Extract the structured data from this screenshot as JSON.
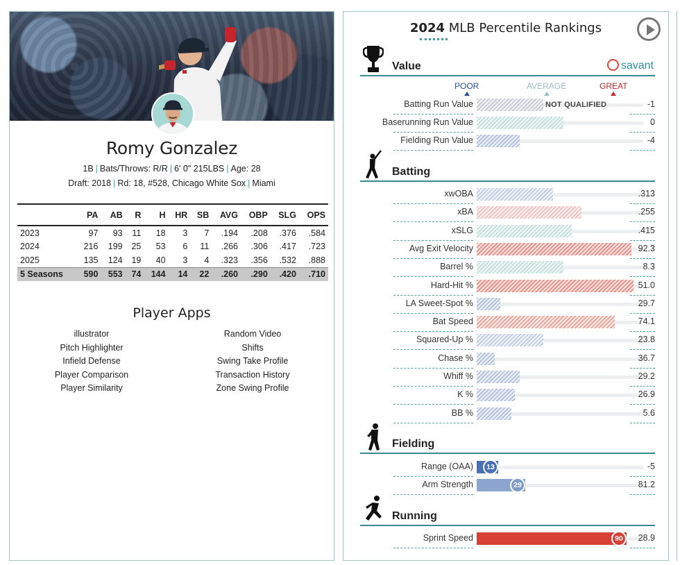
{
  "player": {
    "name": "Romy Gonzalez",
    "position": "1B",
    "bats_throws": "Bats/Throws: R/R",
    "height_weight": "6' 0\" 215LBS",
    "age": "Age: 28",
    "draft": "Draft: 2018",
    "round": "Rd: 18, #528, Chicago White Sox",
    "school": "Miami"
  },
  "stats_table": {
    "headers": [
      "",
      "PA",
      "AB",
      "R",
      "H",
      "HR",
      "SB",
      "AVG",
      "OBP",
      "SLG",
      "OPS"
    ],
    "rows": [
      [
        "2023",
        "97",
        "93",
        "11",
        "18",
        "3",
        "7",
        ".194",
        ".208",
        ".376",
        ".584"
      ],
      [
        "2024",
        "216",
        "199",
        "25",
        "53",
        "6",
        "11",
        ".266",
        ".306",
        ".417",
        ".723"
      ],
      [
        "2025",
        "135",
        "124",
        "19",
        "40",
        "3",
        "4",
        ".323",
        ".356",
        ".532",
        ".888"
      ]
    ],
    "total": [
      "5 Seasons",
      "590",
      "553",
      "74",
      "144",
      "14",
      "22",
      ".260",
      ".290",
      ".420",
      ".710"
    ]
  },
  "apps": {
    "title": "Player Apps",
    "left": [
      "illustrator",
      "Pitch Highlighter",
      "Infield Defense",
      "Player Comparison",
      "Player Similarity"
    ],
    "right": [
      "Random Video",
      "Shifts",
      "Swing Take Profile",
      "Transaction History",
      "Zone Swing Profile"
    ]
  },
  "rankings": {
    "year": "2024",
    "title": "MLB Percentile Rankings",
    "brand": "savant",
    "scale": {
      "poor": "POOR",
      "average": "AVERAGE",
      "great": "GREAT",
      "poor_color": "#2a4f9a",
      "average_color": "#9cbdbd",
      "great_color": "#c0272d"
    },
    "sections": {
      "value": "Value",
      "batting": "Batting",
      "fielding": "Fielding",
      "running": "Running"
    },
    "value": [
      {
        "label": "Batting Run Value",
        "value": "-1",
        "pct": 40,
        "style": "h-grey",
        "note": "NOT QUALIFIED"
      },
      {
        "label": "Baserunning Run Value",
        "value": "0",
        "pct": 52,
        "style": "h-mint"
      },
      {
        "label": "Fielding Run Value",
        "value": "-4",
        "pct": 26,
        "style": "h-blue"
      }
    ],
    "batting": [
      {
        "label": "xwOBA",
        "value": ".313",
        "pct": 46,
        "style": "h-ltblue"
      },
      {
        "label": "xBA",
        "value": ".255",
        "pct": 63,
        "style": "h-pink"
      },
      {
        "label": "xSLG",
        "value": ".415",
        "pct": 57,
        "style": "h-mint"
      },
      {
        "label": "Avg Exit Velocity",
        "value": "92.3",
        "pct": 93,
        "style": "h-red"
      },
      {
        "label": "Barrel %",
        "value": "8.3",
        "pct": 52,
        "style": "h-mint"
      },
      {
        "label": "Hard-Hit %",
        "value": "51.0",
        "pct": 94,
        "style": "h-red"
      },
      {
        "label": "LA Sweet-Spot %",
        "value": "29.7",
        "pct": 14,
        "style": "h-blue"
      },
      {
        "label": "Bat Speed",
        "value": "74.1",
        "pct": 83,
        "style": "h-salmon"
      },
      {
        "label": "Squared-Up %",
        "value": "23.8",
        "pct": 40,
        "style": "h-ltblue"
      },
      {
        "label": "Chase %",
        "value": "36.7",
        "pct": 11,
        "style": "h-blue"
      },
      {
        "label": "Whiff %",
        "value": "29.2",
        "pct": 26,
        "style": "h-blue"
      },
      {
        "label": "K %",
        "value": "26.9",
        "pct": 23,
        "style": "h-blue"
      },
      {
        "label": "BB %",
        "value": "5.6",
        "pct": 21,
        "style": "h-blue"
      }
    ],
    "fielding": [
      {
        "label": "Range (OAA)",
        "value": "-5",
        "pct": 13,
        "percentile": "13",
        "style": "s-blue",
        "bubble": "#4a6fb5"
      },
      {
        "label": "Arm Strength",
        "value": "81.2",
        "pct": 29,
        "percentile": "29",
        "style": "s-blue2",
        "bubble": "#7f9bc8"
      }
    ],
    "running": [
      {
        "label": "Sprint Speed",
        "value": "28.9",
        "pct": 90,
        "percentile": "90",
        "style": "s-red",
        "bubble": "#d84036"
      }
    ]
  }
}
